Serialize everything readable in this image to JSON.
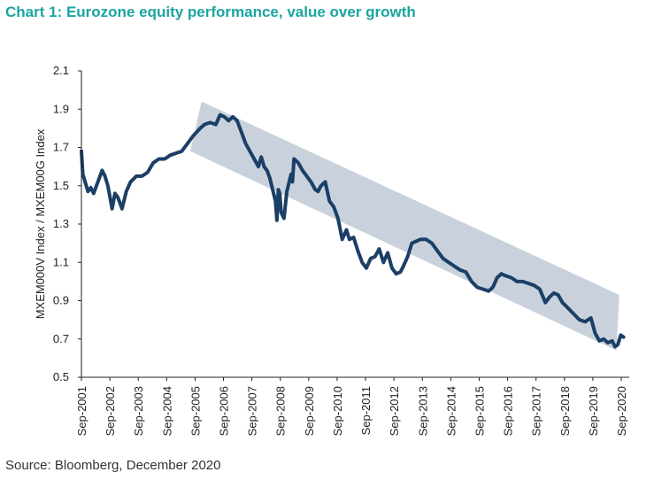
{
  "title": "Chart 1: Eurozone equity performance, value over growth",
  "source": "Source: Bloomberg, December 2020",
  "colors": {
    "title": "#1aa5a1",
    "line": "#1b3f66",
    "band": "#c9d2dc",
    "axis": "#222222"
  },
  "chart_data": {
    "type": "line",
    "title": "Chart 1: Eurozone equity performance, value over growth",
    "xlabel": "",
    "ylabel": "MXEM000V Index / MXEM00G Index",
    "ylim": [
      0.5,
      2.1
    ],
    "yticks": [
      0.5,
      0.7,
      0.9,
      1.1,
      1.3,
      1.5,
      1.7,
      1.9,
      2.1
    ],
    "ytick_labels": [
      "0.5",
      "0.7",
      "0.9",
      "1.1",
      "1.3",
      "1.5",
      "1.7",
      "1.9",
      "2.1"
    ],
    "xlim": [
      2001.67,
      2020.95
    ],
    "xtick_labels": [
      "Sep-2001",
      "Sep-2002",
      "Sep-2003",
      "Sep-2004",
      "Sep-2005",
      "Sep-2006",
      "Sep-2007",
      "Sep-2008",
      "Sep-2009",
      "Sep-2010",
      "Sep-2011",
      "Sep-2012",
      "Sep-2013",
      "Sep-2014",
      "Sep-2015",
      "Sep-2016",
      "Sep-2017",
      "Sep-2018",
      "Sep-2019",
      "Sep-2020"
    ],
    "grid": false,
    "legend": "none",
    "trend_channel": {
      "upper": [
        [
          2005.9,
          1.94
        ],
        [
          2020.6,
          0.93
        ]
      ],
      "lower": [
        [
          2005.5,
          1.68
        ],
        [
          2020.5,
          0.64
        ]
      ]
    },
    "series": [
      {
        "x": [
          2001.67,
          2001.72,
          2001.8,
          2001.9,
          2002.0,
          2002.1,
          2002.25,
          2002.4,
          2002.5,
          2002.6,
          2002.75,
          2002.85,
          2002.95,
          2003.1,
          2003.25,
          2003.4,
          2003.6,
          2003.8,
          2004.0,
          2004.2,
          2004.4,
          2004.6,
          2004.8,
          2005.0,
          2005.2,
          2005.4,
          2005.6,
          2005.85,
          2006.0,
          2006.2,
          2006.4,
          2006.55,
          2006.7,
          2006.85,
          2007.0,
          2007.15,
          2007.3,
          2007.45,
          2007.6,
          2007.75,
          2007.9,
          2008.0,
          2008.1,
          2008.2,
          2008.3,
          2008.4,
          2008.5,
          2008.55,
          2008.6,
          2008.65,
          2008.7,
          2008.8,
          2008.9,
          2009.0,
          2009.05,
          2009.1,
          2009.15,
          2009.3,
          2009.45,
          2009.6,
          2009.75,
          2009.9,
          2010.0,
          2010.1,
          2010.25,
          2010.4,
          2010.55,
          2010.7,
          2010.85,
          2011.0,
          2011.1,
          2011.25,
          2011.4,
          2011.55,
          2011.7,
          2011.85,
          2012.0,
          2012.15,
          2012.3,
          2012.45,
          2012.6,
          2012.75,
          2012.9,
          2013.0,
          2013.15,
          2013.3,
          2013.45,
          2013.6,
          2013.8,
          2014.0,
          2014.2,
          2014.4,
          2014.6,
          2014.8,
          2015.0,
          2015.2,
          2015.4,
          2015.6,
          2015.8,
          2016.0,
          2016.15,
          2016.3,
          2016.45,
          2016.6,
          2016.8,
          2017.0,
          2017.2,
          2017.4,
          2017.6,
          2017.8,
          2018.0,
          2018.15,
          2018.3,
          2018.45,
          2018.6,
          2018.8,
          2019.0,
          2019.2,
          2019.4,
          2019.6,
          2019.75,
          2019.9,
          2020.05,
          2020.2,
          2020.35,
          2020.45,
          2020.55,
          2020.65,
          2020.75
        ],
        "values": [
          1.68,
          1.56,
          1.52,
          1.47,
          1.49,
          1.46,
          1.52,
          1.58,
          1.55,
          1.5,
          1.38,
          1.46,
          1.44,
          1.38,
          1.47,
          1.52,
          1.55,
          1.55,
          1.57,
          1.62,
          1.64,
          1.64,
          1.66,
          1.67,
          1.68,
          1.72,
          1.76,
          1.8,
          1.82,
          1.83,
          1.82,
          1.87,
          1.86,
          1.84,
          1.86,
          1.84,
          1.78,
          1.72,
          1.68,
          1.64,
          1.6,
          1.65,
          1.6,
          1.58,
          1.54,
          1.48,
          1.42,
          1.32,
          1.48,
          1.46,
          1.36,
          1.33,
          1.47,
          1.53,
          1.56,
          1.52,
          1.64,
          1.62,
          1.58,
          1.55,
          1.52,
          1.48,
          1.47,
          1.5,
          1.52,
          1.42,
          1.39,
          1.33,
          1.22,
          1.27,
          1.22,
          1.23,
          1.16,
          1.1,
          1.07,
          1.12,
          1.13,
          1.17,
          1.1,
          1.15,
          1.07,
          1.04,
          1.05,
          1.08,
          1.13,
          1.2,
          1.21,
          1.22,
          1.22,
          1.2,
          1.16,
          1.12,
          1.1,
          1.08,
          1.06,
          1.05,
          1.0,
          0.97,
          0.96,
          0.95,
          0.97,
          1.02,
          1.04,
          1.03,
          1.02,
          1.0,
          1.0,
          0.99,
          0.98,
          0.96,
          0.89,
          0.92,
          0.94,
          0.93,
          0.89,
          0.86,
          0.83,
          0.8,
          0.79,
          0.81,
          0.73,
          0.69,
          0.7,
          0.68,
          0.69,
          0.66,
          0.67,
          0.72,
          0.71
        ]
      }
    ]
  }
}
